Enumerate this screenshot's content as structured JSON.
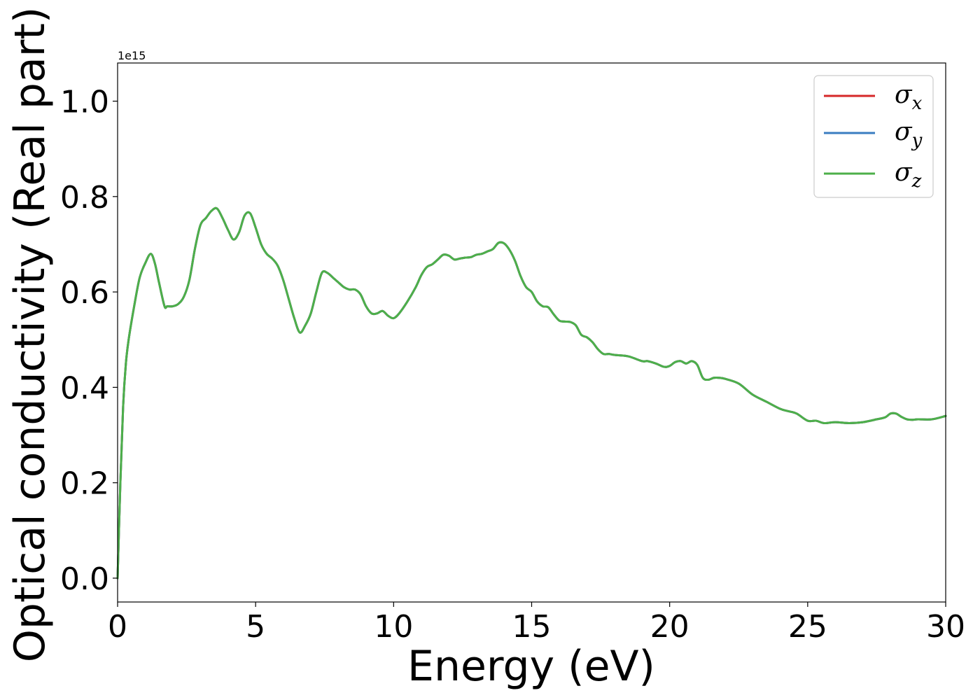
{
  "chart_data": {
    "type": "line",
    "xlabel": "Energy (eV)",
    "ylabel": "Optical conductivity (Real part)",
    "y_offset_text": "1e15",
    "xlim": [
      0,
      30
    ],
    "ylim": [
      -0.05,
      1.08
    ],
    "x_ticks": [
      0,
      5,
      10,
      15,
      20,
      25,
      30
    ],
    "x_tick_labels": [
      "0",
      "5",
      "10",
      "15",
      "20",
      "25",
      "30"
    ],
    "y_ticks": [
      0.0,
      0.2,
      0.4,
      0.6,
      0.8,
      1.0
    ],
    "y_tick_labels": [
      "0.0",
      "0.2",
      "0.4",
      "0.6",
      "0.8",
      "1.0"
    ],
    "grid": false,
    "legend_position": "top-right",
    "series": [
      {
        "name": "σ",
        "subscript": "x",
        "color": "#d62728"
      },
      {
        "name": "σ",
        "subscript": "y",
        "color": "#3a7dc0"
      },
      {
        "name": "σ",
        "subscript": "z",
        "color": "#4daf4a"
      }
    ],
    "x": [
      0,
      0.1,
      0.2,
      0.3,
      0.4,
      0.6,
      0.8,
      1.0,
      1.2,
      1.35,
      1.5,
      1.7,
      1.8,
      2.0,
      2.2,
      2.4,
      2.6,
      2.8,
      3.0,
      3.2,
      3.4,
      3.6,
      3.8,
      4.0,
      4.2,
      4.4,
      4.6,
      4.8,
      5.0,
      5.2,
      5.4,
      5.6,
      5.8,
      6.0,
      6.2,
      6.4,
      6.6,
      6.8,
      7.0,
      7.2,
      7.4,
      7.6,
      7.8,
      8.0,
      8.2,
      8.4,
      8.6,
      8.8,
      9.0,
      9.2,
      9.4,
      9.6,
      9.8,
      10.0,
      10.2,
      10.5,
      10.8,
      11.0,
      11.2,
      11.4,
      11.6,
      11.8,
      12.0,
      12.2,
      12.4,
      12.6,
      12.8,
      13.0,
      13.2,
      13.4,
      13.6,
      13.8,
      14.0,
      14.2,
      14.4,
      14.6,
      14.8,
      15.0,
      15.2,
      15.4,
      15.6,
      15.8,
      16.0,
      16.2,
      16.4,
      16.6,
      16.8,
      17.0,
      17.2,
      17.4,
      17.6,
      17.8,
      18.0,
      18.5,
      19.0,
      19.2,
      19.5,
      19.8,
      20.0,
      20.2,
      20.4,
      20.6,
      20.8,
      21.0,
      21.2,
      21.4,
      21.6,
      21.8,
      22.0,
      22.5,
      23.0,
      23.5,
      24.0,
      24.3,
      24.6,
      25.0,
      25.3,
      25.6,
      26.0,
      26.5,
      27.0,
      27.5,
      27.8,
      28.0,
      28.2,
      28.4,
      28.6,
      28.8,
      29.0,
      29.5,
      30.0
    ],
    "values": [
      0.0,
      0.2,
      0.36,
      0.45,
      0.5,
      0.57,
      0.63,
      0.66,
      0.68,
      0.66,
      0.62,
      0.57,
      0.57,
      0.57,
      0.575,
      0.59,
      0.625,
      0.69,
      0.74,
      0.755,
      0.77,
      0.775,
      0.755,
      0.73,
      0.71,
      0.725,
      0.76,
      0.765,
      0.735,
      0.7,
      0.68,
      0.67,
      0.655,
      0.625,
      0.585,
      0.545,
      0.515,
      0.53,
      0.555,
      0.6,
      0.64,
      0.64,
      0.63,
      0.62,
      0.61,
      0.605,
      0.605,
      0.595,
      0.57,
      0.555,
      0.555,
      0.56,
      0.55,
      0.545,
      0.555,
      0.58,
      0.61,
      0.635,
      0.652,
      0.658,
      0.668,
      0.678,
      0.676,
      0.668,
      0.67,
      0.672,
      0.673,
      0.678,
      0.68,
      0.685,
      0.69,
      0.703,
      0.702,
      0.688,
      0.665,
      0.633,
      0.61,
      0.6,
      0.58,
      0.57,
      0.568,
      0.553,
      0.54,
      0.538,
      0.537,
      0.53,
      0.51,
      0.505,
      0.495,
      0.48,
      0.47,
      0.47,
      0.468,
      0.465,
      0.455,
      0.455,
      0.45,
      0.443,
      0.445,
      0.453,
      0.455,
      0.45,
      0.455,
      0.447,
      0.42,
      0.416,
      0.42,
      0.42,
      0.418,
      0.408,
      0.385,
      0.37,
      0.355,
      0.35,
      0.345,
      0.33,
      0.33,
      0.325,
      0.327,
      0.325,
      0.327,
      0.333,
      0.337,
      0.345,
      0.345,
      0.338,
      0.333,
      0.332,
      0.333,
      0.333,
      0.34
    ]
  }
}
